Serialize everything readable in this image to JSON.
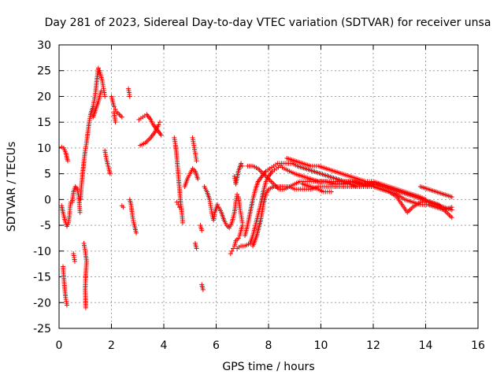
{
  "chart_data": {
    "type": "scatter",
    "title": "Day 281 of 2023, Sidereal Day-to-day VTEC variation (SDTVAR) for receiver unsa",
    "xlabel": "GPS time / hours",
    "ylabel": "SDTVAR / TECUs",
    "xlim": [
      0,
      16
    ],
    "ylim": [
      -25,
      30
    ],
    "xticks": [
      0,
      2,
      4,
      6,
      8,
      10,
      12,
      14,
      16
    ],
    "yticks": [
      -25,
      -20,
      -15,
      -10,
      -5,
      0,
      5,
      10,
      15,
      20,
      25,
      30
    ],
    "grid": true,
    "marker": "+",
    "series_color": "#ff0000",
    "segments": [
      [
        [
          0.1,
          10.2
        ],
        [
          0.18,
          10
        ],
        [
          0.26,
          9
        ],
        [
          0.33,
          7.5
        ]
      ],
      [
        [
          0.1,
          -1.2
        ],
        [
          0.15,
          -2.5
        ],
        [
          0.2,
          -3.5
        ],
        [
          0.25,
          -4.5
        ],
        [
          0.3,
          -5.2
        ],
        [
          0.36,
          -4.5
        ],
        [
          0.4,
          -3
        ],
        [
          0.42,
          -1.5
        ],
        [
          0.45,
          -0.5
        ]
      ],
      [
        [
          0.15,
          -13
        ],
        [
          0.18,
          -15
        ],
        [
          0.21,
          -17
        ],
        [
          0.25,
          -19
        ],
        [
          0.3,
          -20.5
        ]
      ],
      [
        [
          0.55,
          -10.5
        ],
        [
          0.6,
          -12
        ]
      ],
      [
        [
          0.5,
          -0.5
        ],
        [
          0.55,
          1.5
        ],
        [
          0.62,
          2.5
        ],
        [
          0.7,
          2
        ],
        [
          0.75,
          0.5
        ],
        [
          0.78,
          -1
        ],
        [
          0.8,
          -2.5
        ]
      ],
      [
        [
          0.82,
          0
        ],
        [
          0.85,
          2.5
        ],
        [
          0.9,
          5
        ],
        [
          0.95,
          7.5
        ],
        [
          1.0,
          9.5
        ],
        [
          1.05,
          11
        ],
        [
          1.1,
          13
        ],
        [
          1.15,
          15
        ],
        [
          1.2,
          16.5
        ],
        [
          1.3,
          18
        ],
        [
          1.35,
          19.5
        ],
        [
          1.4,
          21
        ],
        [
          1.45,
          23.5
        ],
        [
          1.5,
          25.5
        ],
        [
          1.55,
          25
        ],
        [
          1.6,
          24
        ],
        [
          1.65,
          23
        ],
        [
          1.7,
          21.5
        ],
        [
          1.75,
          20
        ]
      ],
      [
        [
          1.3,
          16
        ],
        [
          1.4,
          17.5
        ],
        [
          1.5,
          19
        ],
        [
          1.6,
          21
        ]
      ],
      [
        [
          0.95,
          -8.5
        ],
        [
          1.0,
          -10
        ],
        [
          1.05,
          -12
        ],
        [
          1.02,
          -14.5
        ],
        [
          1.0,
          -17.5
        ],
        [
          1.02,
          -21
        ]
      ],
      [
        [
          1.75,
          9.5
        ],
        [
          1.8,
          8
        ],
        [
          1.85,
          7
        ],
        [
          1.9,
          6
        ],
        [
          1.95,
          5
        ]
      ],
      [
        [
          2.0,
          20
        ],
        [
          2.05,
          19
        ],
        [
          2.1,
          18
        ],
        [
          2.15,
          17.5
        ],
        [
          2.2,
          17
        ],
        [
          2.3,
          16.5
        ],
        [
          2.4,
          16
        ]
      ],
      [
        [
          2.1,
          17
        ],
        [
          2.15,
          15
        ]
      ],
      [
        [
          2.4,
          -1.2
        ],
        [
          2.45,
          -1.5
        ]
      ],
      [
        [
          2.65,
          21.5
        ],
        [
          2.7,
          20
        ]
      ],
      [
        [
          2.7,
          0
        ],
        [
          2.75,
          -1
        ],
        [
          2.8,
          -3
        ],
        [
          2.85,
          -4.5
        ],
        [
          2.9,
          -5.5
        ],
        [
          2.95,
          -6.5
        ]
      ],
      [
        [
          3.1,
          10.5
        ],
        [
          3.3,
          11
        ],
        [
          3.5,
          12
        ],
        [
          3.65,
          13
        ],
        [
          3.8,
          14.5
        ],
        [
          3.85,
          15
        ]
      ],
      [
        [
          3.05,
          15.5
        ],
        [
          3.2,
          16
        ],
        [
          3.35,
          16.5
        ],
        [
          3.5,
          15.5
        ],
        [
          3.6,
          14.5
        ],
        [
          3.75,
          13.5
        ],
        [
          3.9,
          12.5
        ]
      ],
      [
        [
          4.4,
          12
        ],
        [
          4.45,
          10.5
        ],
        [
          4.5,
          8
        ],
        [
          4.55,
          5
        ],
        [
          4.6,
          2
        ],
        [
          4.65,
          -1
        ],
        [
          4.7,
          -3
        ],
        [
          4.72,
          -4.5
        ]
      ],
      [
        [
          4.5,
          -0.5
        ],
        [
          4.55,
          -1
        ],
        [
          4.6,
          -1.5
        ]
      ],
      [
        [
          4.8,
          2.5
        ],
        [
          4.9,
          4
        ],
        [
          5.0,
          5
        ],
        [
          5.1,
          6
        ],
        [
          5.2,
          5.5
        ],
        [
          5.3,
          4
        ]
      ],
      [
        [
          5.1,
          12
        ],
        [
          5.15,
          10.5
        ],
        [
          5.2,
          9
        ],
        [
          5.25,
          7.5
        ]
      ],
      [
        [
          5.2,
          -8.5
        ],
        [
          5.25,
          -9.5
        ]
      ],
      [
        [
          5.4,
          -5
        ],
        [
          5.45,
          -6
        ]
      ],
      [
        [
          5.45,
          -16.5
        ],
        [
          5.5,
          -17.5
        ]
      ],
      [
        [
          5.55,
          2.5
        ],
        [
          5.65,
          1.5
        ],
        [
          5.75,
          0
        ],
        [
          5.8,
          -1.5
        ],
        [
          5.85,
          -3
        ],
        [
          5.9,
          -4
        ],
        [
          5.95,
          -2.5
        ],
        [
          6.05,
          -1
        ],
        [
          6.1,
          -1.5
        ],
        [
          6.2,
          -2.5
        ],
        [
          6.3,
          -4
        ],
        [
          6.4,
          -5
        ],
        [
          6.5,
          -5.5
        ],
        [
          6.6,
          -4.5
        ],
        [
          6.7,
          -2.5
        ],
        [
          6.75,
          -0.5
        ],
        [
          6.8,
          1
        ],
        [
          6.85,
          0.5
        ],
        [
          6.9,
          -1.5
        ],
        [
          6.95,
          -3
        ],
        [
          7.0,
          -4.5
        ]
      ],
      [
        [
          6.55,
          -10.5
        ],
        [
          6.6,
          -10
        ],
        [
          6.65,
          -9.5
        ],
        [
          6.7,
          -9
        ],
        [
          6.75,
          -8
        ],
        [
          6.85,
          -7.5
        ],
        [
          6.9,
          -7
        ],
        [
          6.95,
          -6
        ],
        [
          7.0,
          -5
        ]
      ],
      [
        [
          6.7,
          4.5
        ],
        [
          6.75,
          3
        ],
        [
          6.85,
          5.5
        ],
        [
          6.95,
          7
        ],
        [
          7.0,
          6.5
        ]
      ],
      [
        [
          6.8,
          -9.5
        ],
        [
          6.95,
          -9
        ],
        [
          7.1,
          -9
        ],
        [
          7.3,
          -8.5
        ],
        [
          7.4,
          -7
        ],
        [
          7.5,
          -5
        ],
        [
          7.6,
          -3
        ],
        [
          7.7,
          -1
        ],
        [
          7.8,
          1.5
        ],
        [
          7.9,
          3.5
        ],
        [
          8.0,
          4.5
        ],
        [
          8.15,
          5.5
        ],
        [
          8.3,
          6
        ],
        [
          8.45,
          6.5
        ],
        [
          8.6,
          6
        ],
        [
          8.8,
          5.5
        ],
        [
          9.0,
          5
        ],
        [
          9.3,
          4.5
        ],
        [
          9.6,
          4
        ],
        [
          9.9,
          3.5
        ],
        [
          10.2,
          3.5
        ],
        [
          10.5,
          3
        ],
        [
          10.8,
          3
        ],
        [
          11.1,
          3
        ],
        [
          11.4,
          2.5
        ],
        [
          11.7,
          2.5
        ],
        [
          12.0,
          2.5
        ],
        [
          12.3,
          2
        ],
        [
          12.6,
          1.5
        ],
        [
          12.9,
          1
        ],
        [
          13.2,
          0
        ],
        [
          13.5,
          -0.5
        ],
        [
          13.8,
          -1
        ],
        [
          14.1,
          -1
        ],
        [
          14.4,
          -1.5
        ],
        [
          14.7,
          -2
        ],
        [
          15.0,
          -1.5
        ]
      ],
      [
        [
          7.1,
          -7
        ],
        [
          7.2,
          -5
        ],
        [
          7.3,
          -2.5
        ],
        [
          7.4,
          0
        ],
        [
          7.5,
          2
        ],
        [
          7.6,
          3.5
        ],
        [
          7.75,
          4.5
        ],
        [
          7.9,
          5.5
        ],
        [
          8.05,
          6
        ],
        [
          8.2,
          6.5
        ],
        [
          8.35,
          7
        ],
        [
          8.5,
          7
        ],
        [
          8.7,
          7
        ],
        [
          8.9,
          7
        ],
        [
          9.1,
          6.5
        ],
        [
          9.4,
          6
        ],
        [
          9.7,
          5.5
        ],
        [
          10.0,
          5
        ],
        [
          10.3,
          4.5
        ],
        [
          10.6,
          4
        ],
        [
          10.9,
          3.5
        ],
        [
          11.2,
          3.5
        ],
        [
          11.5,
          3
        ],
        [
          11.8,
          3
        ],
        [
          12.1,
          3
        ],
        [
          12.4,
          2.5
        ],
        [
          12.7,
          2
        ],
        [
          13.0,
          1.5
        ],
        [
          13.3,
          1
        ],
        [
          13.6,
          0.5
        ],
        [
          13.9,
          0
        ],
        [
          14.2,
          -0.5
        ],
        [
          14.5,
          -1
        ],
        [
          14.8,
          -2.5
        ],
        [
          15.0,
          -3.5
        ]
      ],
      [
        [
          7.4,
          -9
        ],
        [
          7.55,
          -7
        ],
        [
          7.7,
          -4
        ],
        [
          7.8,
          -1
        ],
        [
          7.9,
          1
        ],
        [
          8.0,
          2
        ],
        [
          8.2,
          2.5
        ],
        [
          8.4,
          2.5
        ],
        [
          8.6,
          2.5
        ],
        [
          8.8,
          2.5
        ],
        [
          9.0,
          2
        ],
        [
          9.3,
          2
        ],
        [
          9.6,
          2
        ],
        [
          9.9,
          2.5
        ],
        [
          10.2,
          2.5
        ],
        [
          10.5,
          2.5
        ],
        [
          10.8,
          2.5
        ],
        [
          11.1,
          2.5
        ],
        [
          11.4,
          2.5
        ],
        [
          11.7,
          2.5
        ],
        [
          12.0,
          2.5
        ],
        [
          12.3,
          2
        ],
        [
          12.6,
          1.5
        ],
        [
          12.9,
          0.5
        ],
        [
          13.1,
          -1
        ],
        [
          13.3,
          -2.5
        ],
        [
          13.5,
          -1.5
        ],
        [
          13.8,
          -0.5
        ],
        [
          14.1,
          -0.5
        ],
        [
          14.4,
          -1
        ],
        [
          14.7,
          -1.5
        ],
        [
          15.0,
          -2
        ]
      ],
      [
        [
          7.2,
          6.5
        ],
        [
          7.4,
          6.5
        ],
        [
          7.6,
          6
        ],
        [
          7.7,
          5.5
        ],
        [
          7.8,
          5
        ],
        [
          8.0,
          4
        ],
        [
          8.2,
          3
        ],
        [
          8.4,
          2
        ],
        [
          8.6,
          2
        ],
        [
          8.8,
          2.5
        ],
        [
          9.0,
          3
        ],
        [
          9.2,
          3.5
        ],
        [
          9.5,
          3.5
        ],
        [
          9.8,
          3.5
        ],
        [
          10.1,
          3.5
        ],
        [
          10.4,
          3.5
        ],
        [
          10.7,
          3.5
        ],
        [
          11.0,
          3.5
        ],
        [
          11.3,
          3.5
        ],
        [
          11.6,
          3
        ],
        [
          11.9,
          3
        ],
        [
          12.2,
          3
        ]
      ],
      [
        [
          8.7,
          8
        ],
        [
          9.0,
          7.5
        ],
        [
          9.3,
          7
        ],
        [
          9.6,
          6.5
        ],
        [
          9.9,
          6.5
        ],
        [
          10.2,
          6
        ],
        [
          10.5,
          5.5
        ],
        [
          10.8,
          5
        ],
        [
          11.1,
          4.5
        ],
        [
          11.4,
          4
        ],
        [
          11.7,
          3.5
        ],
        [
          12.0,
          3.5
        ],
        [
          12.3,
          3
        ],
        [
          12.6,
          2.5
        ],
        [
          12.9,
          2
        ],
        [
          13.2,
          1.5
        ],
        [
          13.5,
          1
        ],
        [
          13.8,
          0.5
        ],
        [
          14.0,
          0
        ]
      ],
      [
        [
          9.3,
          3
        ],
        [
          9.6,
          2.5
        ],
        [
          9.9,
          2
        ],
        [
          10.1,
          1.5
        ],
        [
          10.4,
          1.5
        ]
      ],
      [
        [
          13.8,
          2.5
        ],
        [
          14.1,
          2
        ],
        [
          14.4,
          1.5
        ],
        [
          14.7,
          1
        ],
        [
          15.0,
          0.5
        ]
      ]
    ]
  }
}
